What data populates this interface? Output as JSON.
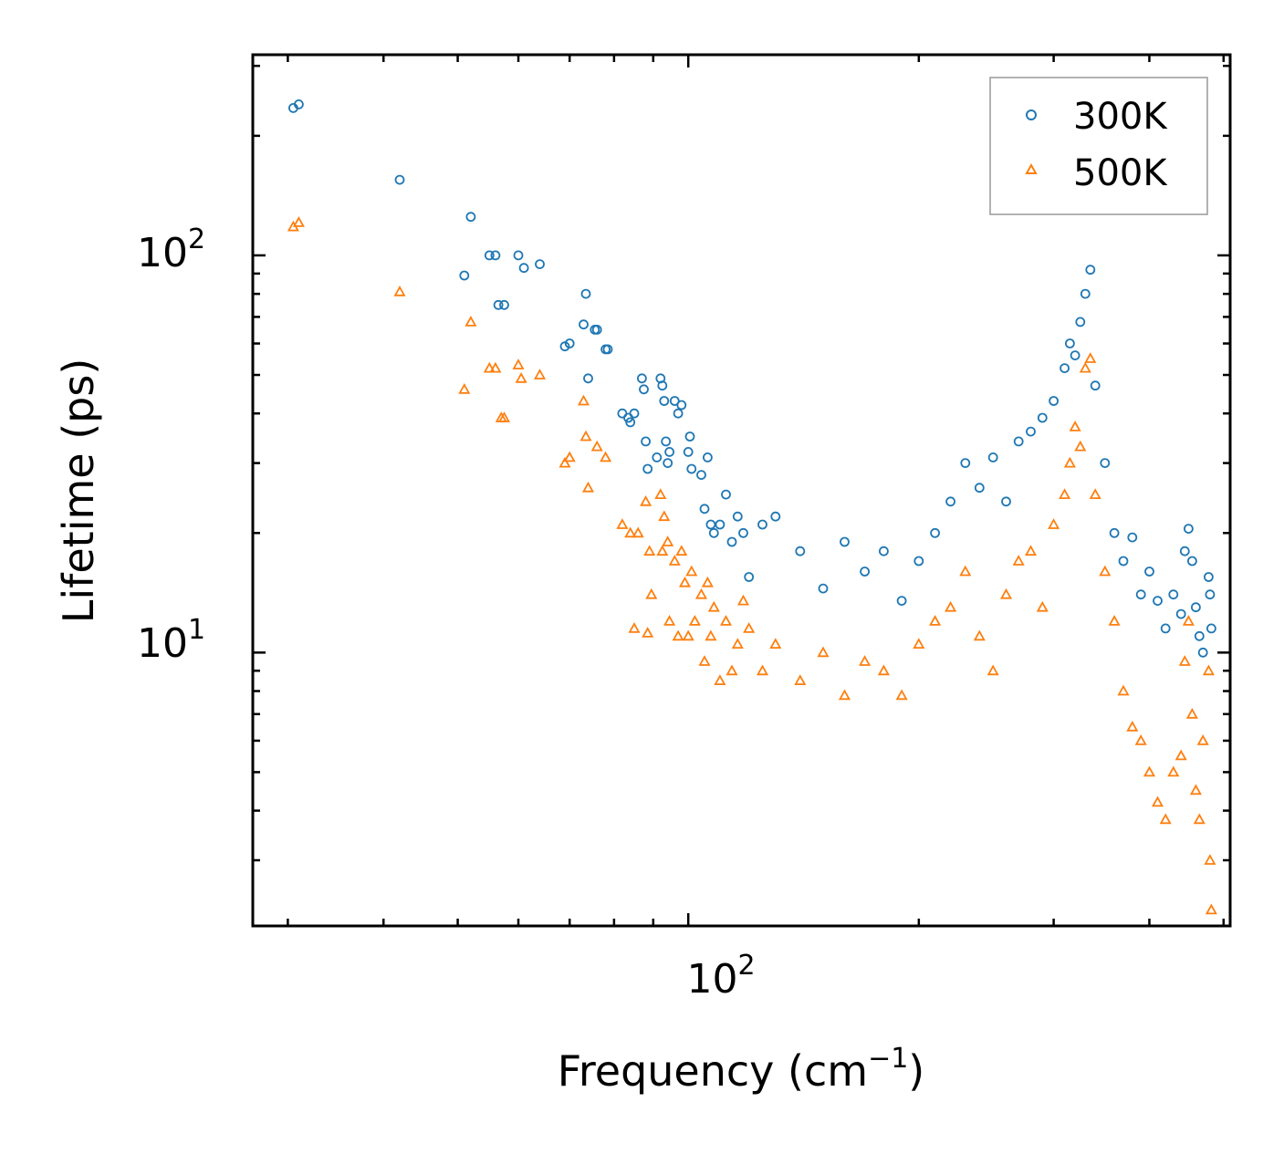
{
  "chart_data": {
    "type": "scatter",
    "x_scale": "log",
    "y_scale": "log",
    "xlim": [
      27,
      510
    ],
    "ylim": [
      2.05,
      320
    ],
    "xlabel": {
      "text": "Frequency (cm",
      "sup": "−1",
      "suffix": ")"
    },
    "ylabel": "Lifetime (ps)",
    "x_ticks": [
      {
        "base": "10",
        "exp": "2",
        "value": 100
      }
    ],
    "y_ticks": [
      {
        "base": "10",
        "exp": "1",
        "value": 10
      },
      {
        "base": "10",
        "exp": "2",
        "value": 100
      }
    ],
    "legend": {
      "position": "top-right"
    },
    "colors": {
      "series_300K": "#1f77b4",
      "series_500K": "#ff7f0e"
    },
    "series": [
      {
        "name": "300K",
        "marker": "circle",
        "color": "#1f77b4",
        "points": [
          [
            30.5,
            235
          ],
          [
            31.0,
            240
          ],
          [
            42.0,
            155
          ],
          [
            52.0,
            125
          ],
          [
            51.0,
            89
          ],
          [
            55.0,
            100
          ],
          [
            56.0,
            100
          ],
          [
            60.0,
            100
          ],
          [
            61.0,
            93
          ],
          [
            64.0,
            95
          ],
          [
            56.5,
            75
          ],
          [
            57.5,
            75
          ],
          [
            69.0,
            59
          ],
          [
            70.0,
            60
          ],
          [
            73.0,
            67
          ],
          [
            73.5,
            80
          ],
          [
            74.0,
            49
          ],
          [
            75.5,
            65
          ],
          [
            76.0,
            65
          ],
          [
            78.0,
            58
          ],
          [
            78.5,
            58
          ],
          [
            82.0,
            40
          ],
          [
            83.5,
            39
          ],
          [
            84.0,
            38
          ],
          [
            85.0,
            40
          ],
          [
            87.0,
            49
          ],
          [
            87.5,
            46
          ],
          [
            88.0,
            34
          ],
          [
            88.5,
            29
          ],
          [
            91.0,
            31
          ],
          [
            92.0,
            49
          ],
          [
            92.5,
            47
          ],
          [
            93.0,
            43
          ],
          [
            93.5,
            34
          ],
          [
            94.0,
            30
          ],
          [
            94.5,
            32
          ],
          [
            96.0,
            43
          ],
          [
            97.0,
            40
          ],
          [
            98.0,
            42
          ],
          [
            100.0,
            32
          ],
          [
            100.5,
            35
          ],
          [
            101.0,
            29
          ],
          [
            104.0,
            28
          ],
          [
            105.0,
            23
          ],
          [
            106.0,
            31
          ],
          [
            107.0,
            21
          ],
          [
            108.0,
            20
          ],
          [
            110.0,
            21
          ],
          [
            112.0,
            25
          ],
          [
            114.0,
            19
          ],
          [
            116.0,
            22
          ],
          [
            118.0,
            20
          ],
          [
            120.0,
            15.5
          ],
          [
            125.0,
            21
          ],
          [
            130.0,
            22
          ],
          [
            140.0,
            18
          ],
          [
            150.0,
            14.5
          ],
          [
            160.0,
            19
          ],
          [
            170.0,
            16
          ],
          [
            180.0,
            18
          ],
          [
            190.0,
            13.5
          ],
          [
            200.0,
            17
          ],
          [
            210.0,
            20
          ],
          [
            220.0,
            24
          ],
          [
            230.0,
            30
          ],
          [
            240.0,
            26
          ],
          [
            250.0,
            31
          ],
          [
            260.0,
            24
          ],
          [
            270.0,
            34
          ],
          [
            280.0,
            36
          ],
          [
            290.0,
            39
          ],
          [
            300.0,
            43
          ],
          [
            310.0,
            52
          ],
          [
            315.0,
            60
          ],
          [
            320.0,
            56
          ],
          [
            325.0,
            68
          ],
          [
            330.0,
            80
          ],
          [
            335.0,
            92
          ],
          [
            340.0,
            47
          ],
          [
            350.0,
            30
          ],
          [
            360.0,
            20
          ],
          [
            370.0,
            17
          ],
          [
            380.0,
            19.5
          ],
          [
            390.0,
            14
          ],
          [
            400.0,
            16
          ],
          [
            410.0,
            13.5
          ],
          [
            420.0,
            11.5
          ],
          [
            430.0,
            14
          ],
          [
            440.0,
            12.5
          ],
          [
            445.0,
            18
          ],
          [
            450.0,
            20.5
          ],
          [
            455.0,
            17
          ],
          [
            460.0,
            13
          ],
          [
            465.0,
            11
          ],
          [
            470.0,
            10
          ],
          [
            478.0,
            15.5
          ],
          [
            480.0,
            14
          ],
          [
            482.0,
            11.5
          ]
        ]
      },
      {
        "name": "500K",
        "marker": "triangle",
        "color": "#ff7f0e",
        "points": [
          [
            30.5,
            118
          ],
          [
            31.0,
            121
          ],
          [
            42.0,
            81
          ],
          [
            51.0,
            46
          ],
          [
            52.0,
            68
          ],
          [
            55.0,
            52
          ],
          [
            56.0,
            52
          ],
          [
            57.0,
            39
          ],
          [
            57.5,
            39
          ],
          [
            60.0,
            53
          ],
          [
            60.5,
            49
          ],
          [
            64.0,
            50
          ],
          [
            69.0,
            30
          ],
          [
            70.0,
            31
          ],
          [
            73.0,
            43
          ],
          [
            73.5,
            35
          ],
          [
            74.0,
            26
          ],
          [
            76.0,
            33
          ],
          [
            78.0,
            31
          ],
          [
            82.0,
            21
          ],
          [
            84.0,
            20
          ],
          [
            85.0,
            11.5
          ],
          [
            86.0,
            20
          ],
          [
            88.0,
            24
          ],
          [
            88.5,
            11.2
          ],
          [
            89.0,
            18
          ],
          [
            89.5,
            14
          ],
          [
            92.0,
            25
          ],
          [
            92.5,
            18
          ],
          [
            93.0,
            22
          ],
          [
            94.0,
            19
          ],
          [
            94.5,
            12
          ],
          [
            96.0,
            17
          ],
          [
            97.0,
            11
          ],
          [
            98.0,
            18
          ],
          [
            99.0,
            15
          ],
          [
            100.0,
            11
          ],
          [
            101.0,
            16
          ],
          [
            102.0,
            12
          ],
          [
            104.0,
            14
          ],
          [
            105.0,
            9.5
          ],
          [
            106.0,
            15
          ],
          [
            107.0,
            11
          ],
          [
            108.0,
            13
          ],
          [
            110.0,
            8.5
          ],
          [
            112.0,
            12
          ],
          [
            114.0,
            9
          ],
          [
            116.0,
            10.5
          ],
          [
            118.0,
            13.5
          ],
          [
            120.0,
            11.5
          ],
          [
            125.0,
            9
          ],
          [
            130.0,
            10.5
          ],
          [
            140.0,
            8.5
          ],
          [
            150.0,
            10
          ],
          [
            160.0,
            7.8
          ],
          [
            170.0,
            9.5
          ],
          [
            180.0,
            9
          ],
          [
            190.0,
            7.8
          ],
          [
            200.0,
            10.5
          ],
          [
            210.0,
            12
          ],
          [
            220.0,
            13
          ],
          [
            230.0,
            16
          ],
          [
            240.0,
            11
          ],
          [
            250.0,
            9
          ],
          [
            260.0,
            14
          ],
          [
            270.0,
            17
          ],
          [
            280.0,
            18
          ],
          [
            290.0,
            13
          ],
          [
            300.0,
            21
          ],
          [
            310.0,
            25
          ],
          [
            315.0,
            30
          ],
          [
            320.0,
            37
          ],
          [
            325.0,
            33
          ],
          [
            330.0,
            52
          ],
          [
            335.0,
            55
          ],
          [
            340.0,
            25
          ],
          [
            350.0,
            16
          ],
          [
            360.0,
            12
          ],
          [
            370.0,
            8
          ],
          [
            380.0,
            6.5
          ],
          [
            390.0,
            6
          ],
          [
            400.0,
            5
          ],
          [
            410.0,
            4.2
          ],
          [
            420.0,
            3.8
          ],
          [
            430.0,
            5
          ],
          [
            440.0,
            5.5
          ],
          [
            445.0,
            9.5
          ],
          [
            450.0,
            12
          ],
          [
            455.0,
            7
          ],
          [
            460.0,
            4.5
          ],
          [
            465.0,
            3.8
          ],
          [
            470.0,
            6
          ],
          [
            478.0,
            9
          ],
          [
            480.0,
            3
          ],
          [
            482.0,
            2.25
          ]
        ]
      }
    ]
  }
}
